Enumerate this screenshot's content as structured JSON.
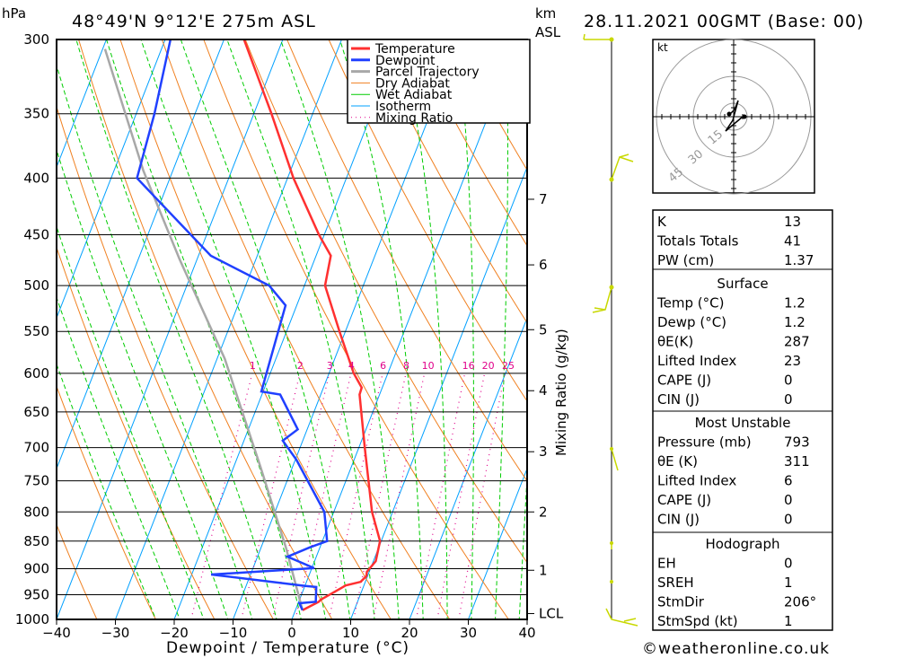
{
  "header": {
    "pressure_unit": "hPa",
    "location": "48°49'N  9°12'E  275m  ASL",
    "km_unit": "km",
    "asl_label": "ASL",
    "datetime": "28.11.2021  00GMT  (Base: 00)"
  },
  "legend": [
    "Temperature",
    "Dewpoint",
    "Parcel Trajectory",
    "Dry Adiabat",
    "Wet Adiabat",
    "Isotherm",
    "Mixing Ratio"
  ],
  "colors": {
    "temperature": "#ff3030",
    "dewpoint": "#2040ff",
    "parcel": "#a8a8a8",
    "dry": "#f08020",
    "wet": "#00cc00",
    "isotherm": "#00a0ff",
    "mixing": "#e0008a"
  },
  "chart_data": {
    "type": "line",
    "title": "48°49'N  9°12'E  275m  ASL",
    "xlabel": "Dewpoint / Temperature (°C)",
    "ylabel": "hPa",
    "xlim": [
      -40,
      40
    ],
    "ylim": [
      1000,
      300
    ],
    "x_ticks": [
      "−40",
      "−30",
      "−20",
      "−10",
      "0",
      "10",
      "20",
      "30",
      "40"
    ],
    "y_ticks": [
      "300",
      "350",
      "400",
      "450",
      "500",
      "550",
      "600",
      "650",
      "700",
      "750",
      "800",
      "850",
      "900",
      "950",
      "1000"
    ],
    "km_ticks": [
      {
        "label": "1",
        "p": 903
      },
      {
        "label": "2",
        "p": 800
      },
      {
        "label": "3",
        "p": 706
      },
      {
        "label": "4",
        "p": 622
      },
      {
        "label": "5",
        "p": 548
      },
      {
        "label": "6",
        "p": 479
      },
      {
        "label": "7",
        "p": 418
      },
      {
        "label": "LCL",
        "p": 988
      }
    ],
    "mixing_ratio_label": "Mixing Ratio (g/kg)",
    "mixing_ratios": [
      "1",
      "2",
      "3",
      "4",
      "6",
      "8",
      "10",
      "16",
      "20",
      "25"
    ],
    "series": [
      {
        "name": "Temperature",
        "points": [
          [
            981,
            1.2
          ],
          [
            964,
            3.4
          ],
          [
            960,
            3.6
          ],
          [
            932,
            6.9
          ],
          [
            925,
            9.2
          ],
          [
            914,
            9.8
          ],
          [
            906,
            9.6
          ],
          [
            886,
            10.4
          ],
          [
            850,
            9.8
          ],
          [
            800,
            6.5
          ],
          [
            700,
            1.0
          ],
          [
            627,
            -3.4
          ],
          [
            618,
            -3.5
          ],
          [
            600,
            -5.8
          ],
          [
            550,
            -11
          ],
          [
            500,
            -16.5
          ],
          [
            470,
            -17.5
          ],
          [
            450,
            -20.9
          ],
          [
            400,
            -29
          ],
          [
            350,
            -37
          ],
          [
            300,
            -46.6
          ]
        ]
      },
      {
        "name": "Dewpoint",
        "points": [
          [
            981,
            1.2
          ],
          [
            967,
            0.2
          ],
          [
            964,
            2.9
          ],
          [
            935,
            2.0
          ],
          [
            933,
            0.1
          ],
          [
            911,
            -16.7
          ],
          [
            899,
            0.4
          ],
          [
            878,
            -4.9
          ],
          [
            861,
            -1.7
          ],
          [
            850,
            0.8
          ],
          [
            800,
            -1.6
          ],
          [
            718,
            -9.8
          ],
          [
            690,
            -13.4
          ],
          [
            674,
            -11.6
          ],
          [
            627,
            -16.9
          ],
          [
            623,
            -20.3
          ],
          [
            521,
            -21.9
          ],
          [
            500,
            -26
          ],
          [
            470,
            -37.9
          ],
          [
            421,
            -50
          ],
          [
            400,
            -55.6
          ],
          [
            350,
            -56.9
          ],
          [
            300,
            -59.1
          ]
        ]
      },
      {
        "name": "Parcel Trajectory",
        "points": [
          [
            981,
            1.2
          ],
          [
            861,
            -5.8
          ],
          [
            728,
            -15.5
          ],
          [
            582,
            -28.7
          ],
          [
            474,
            -42.9
          ],
          [
            394,
            -55
          ],
          [
            306,
            -69.6
          ]
        ]
      }
    ]
  },
  "hodograph": {
    "unit": "kt",
    "rings": [
      "15",
      "30",
      "45"
    ]
  },
  "indices": {
    "top": [
      {
        "label": "K",
        "value": "13"
      },
      {
        "label": "Totals Totals",
        "value": "41"
      },
      {
        "label": "PW (cm)",
        "value": "1.37"
      }
    ],
    "surface": {
      "title": "Surface",
      "rows": [
        {
          "label": "Temp (°C)",
          "value": "1.2"
        },
        {
          "label": "Dewp (°C)",
          "value": "1.2"
        },
        {
          "label": "θE(K)",
          "value": "287"
        },
        {
          "label": "Lifted Index",
          "value": "23"
        },
        {
          "label": "CAPE (J)",
          "value": "0"
        },
        {
          "label": "CIN (J)",
          "value": "0"
        }
      ]
    },
    "most_unstable": {
      "title": "Most Unstable",
      "rows": [
        {
          "label": "Pressure (mb)",
          "value": "793"
        },
        {
          "label": "θE (K)",
          "value": "311"
        },
        {
          "label": "Lifted Index",
          "value": "6"
        },
        {
          "label": "CAPE (J)",
          "value": "0"
        },
        {
          "label": "CIN (J)",
          "value": "0"
        }
      ]
    },
    "hodograph": {
      "title": "Hodograph",
      "rows": [
        {
          "label": "EH",
          "value": "0"
        },
        {
          "label": "SREH",
          "value": "1"
        },
        {
          "label": "StmDir",
          "value": "206°"
        },
        {
          "label": "StmSpd (kt)",
          "value": "1"
        }
      ]
    }
  },
  "copyright": "©weatheronline.co.uk"
}
